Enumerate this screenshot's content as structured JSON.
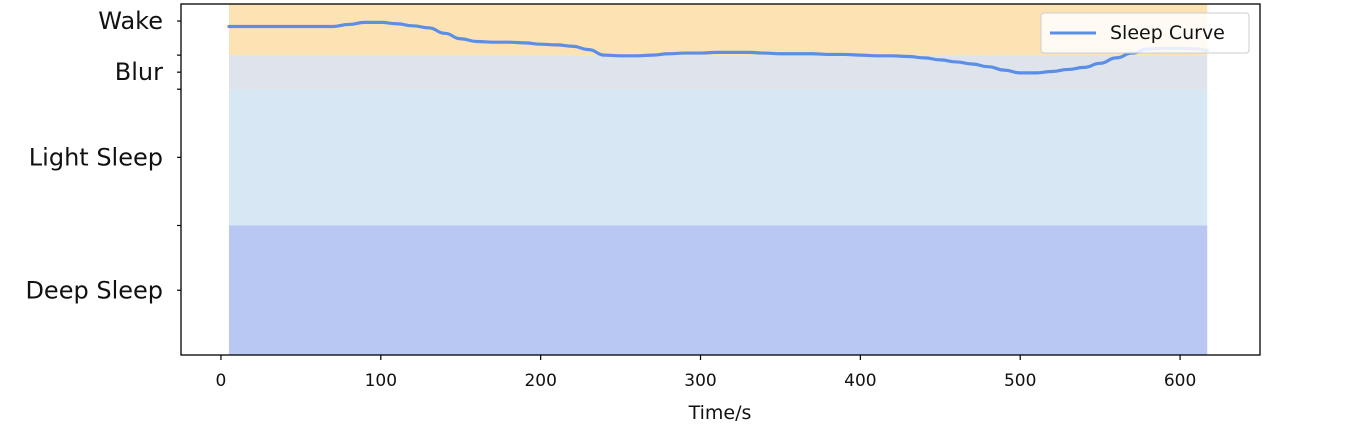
{
  "chart_data": {
    "type": "line",
    "title": "",
    "xlabel": "Time/s",
    "ylabel": "",
    "xlim": [
      -25,
      650
    ],
    "ylim": [
      -4.4,
      0.75
    ],
    "xticks": [
      0,
      100,
      200,
      300,
      400,
      500,
      600
    ],
    "grid": false,
    "legend_position": "top-right",
    "bands": [
      {
        "label": "Wake",
        "from": 0,
        "to": 1,
        "color": "#fde3b4"
      },
      {
        "label": "Blur",
        "from": -0.5,
        "to": 0,
        "color": "#dfe3ec"
      },
      {
        "label": "Light Sleep",
        "from": -2.5,
        "to": -0.5,
        "color": "#d8e7f4"
      },
      {
        "label": "Deep Sleep",
        "from": -4.4,
        "to": -2.5,
        "color": "#b9c8f3"
      }
    ],
    "band_x_range": [
      5,
      617
    ],
    "series": [
      {
        "name": "Sleep Curve",
        "color": "#5b8ee6",
        "x": [
          5,
          20,
          40,
          60,
          70,
          80,
          90,
          100,
          110,
          120,
          130,
          140,
          150,
          160,
          170,
          180,
          190,
          200,
          210,
          220,
          230,
          240,
          250,
          260,
          270,
          280,
          290,
          300,
          310,
          320,
          330,
          340,
          350,
          360,
          370,
          380,
          390,
          400,
          410,
          420,
          430,
          440,
          450,
          460,
          470,
          480,
          490,
          500,
          510,
          520,
          530,
          540,
          550,
          560,
          570,
          580,
          590,
          600,
          610,
          617
        ],
        "y": [
          0.42,
          0.42,
          0.42,
          0.42,
          0.42,
          0.45,
          0.48,
          0.48,
          0.46,
          0.43,
          0.4,
          0.32,
          0.24,
          0.2,
          0.19,
          0.19,
          0.18,
          0.16,
          0.15,
          0.13,
          0.08,
          0.0,
          -0.01,
          -0.01,
          0.0,
          0.02,
          0.03,
          0.03,
          0.04,
          0.04,
          0.04,
          0.03,
          0.02,
          0.02,
          0.02,
          0.01,
          0.01,
          0.0,
          -0.01,
          -0.01,
          -0.02,
          -0.04,
          -0.07,
          -0.1,
          -0.13,
          -0.17,
          -0.22,
          -0.26,
          -0.26,
          -0.24,
          -0.21,
          -0.18,
          -0.12,
          -0.04,
          0.03,
          0.09,
          0.1,
          0.1,
          0.09,
          0.07
        ]
      }
    ]
  }
}
